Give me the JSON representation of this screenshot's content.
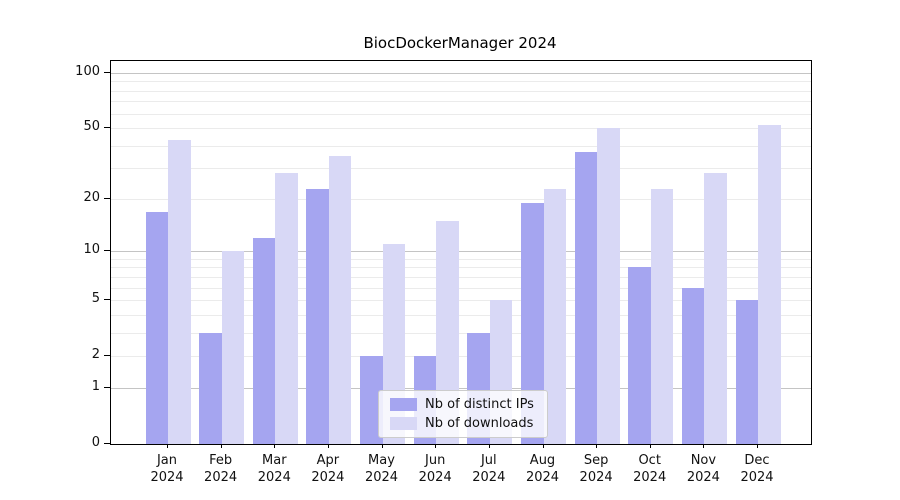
{
  "title": "BiocDockerManager 2024",
  "chart_data": {
    "type": "bar",
    "title": "BiocDockerManager 2024",
    "categories": [
      "Jan 2024",
      "Feb 2024",
      "Mar 2024",
      "Apr 2024",
      "May 2024",
      "Jun 2024",
      "Jul 2024",
      "Aug 2024",
      "Sep 2024",
      "Oct 2024",
      "Nov 2024",
      "Dec 2024"
    ],
    "series": [
      {
        "name": "Nb of distinct IPs",
        "color": "#a5a5f0",
        "values": [
          17,
          3,
          12,
          23,
          2,
          2,
          3,
          19,
          37,
          8,
          6,
          5
        ]
      },
      {
        "name": "Nb of downloads",
        "color": "#d8d8f6",
        "values": [
          43,
          10,
          28,
          35,
          11,
          15,
          5,
          23,
          50,
          23,
          28,
          52
        ]
      }
    ],
    "xlabel": "",
    "ylabel": "",
    "yscale": "log1p",
    "ylim": [
      0,
      116
    ],
    "y_ticks": [
      0,
      1,
      2,
      5,
      10,
      20,
      50,
      100
    ],
    "y_major_gridlines": [
      1,
      10,
      100
    ],
    "y_minor_gridlines": [
      2,
      3,
      4,
      5,
      6,
      7,
      8,
      9,
      20,
      30,
      40,
      50,
      60,
      70,
      80,
      90
    ],
    "grid": "on",
    "legend_position": "lower center"
  },
  "legend": {
    "items": [
      {
        "label": "Nb of distinct IPs",
        "color": "#a5a5f0"
      },
      {
        "label": "Nb of downloads",
        "color": "#d8d8f6"
      }
    ]
  },
  "colors": {
    "distinct_ips_bar": "#a5a5f0",
    "downloads_bar": "#d8d8f6",
    "major_gridline": "#c4c4c4",
    "minor_gridline": "#ebebeb",
    "axis": "#000000",
    "background": "#ffffff"
  }
}
